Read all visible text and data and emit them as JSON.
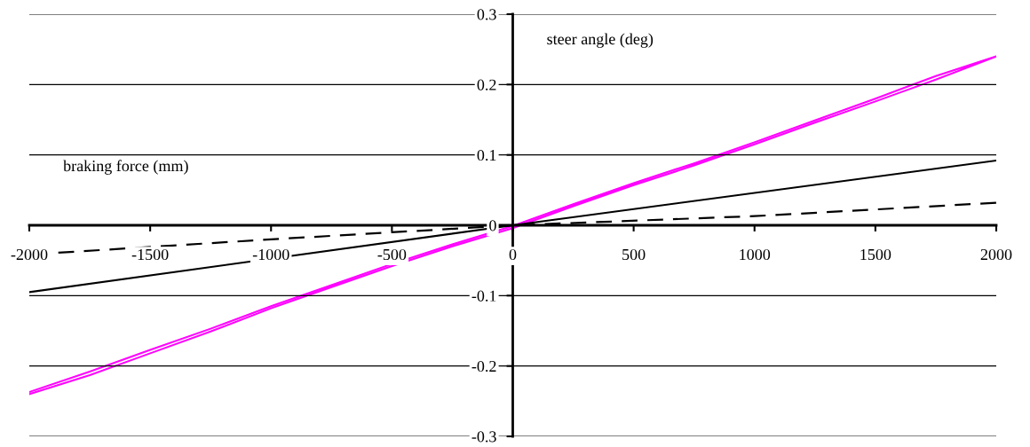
{
  "chart_data": {
    "type": "line",
    "xlabel": "braking force (mm)",
    "ylabel": "steer angle (deg)",
    "xlim": [
      -2000,
      2000
    ],
    "ylim": [
      -0.3,
      0.3
    ],
    "xticks": [
      -2000,
      -1500,
      -1000,
      -500,
      0,
      500,
      1000,
      1500,
      2000
    ],
    "yticks": [
      -0.3,
      -0.2,
      -0.1,
      0,
      0.1,
      0.2,
      0.3
    ],
    "grid": "y",
    "series": [
      {
        "color": "#ff00ff",
        "line_style": "solid",
        "x": [
          -2000,
          -1750,
          -1500,
          -1250,
          -1000,
          -750,
          -500,
          -250,
          0,
          250,
          500,
          750,
          1000,
          1250,
          1500,
          1750,
          2000,
          1750,
          1500,
          1250,
          1000,
          750,
          500,
          250,
          0,
          -250,
          -500,
          -750,
          -1000,
          -1250,
          -1500,
          -1750,
          -2000
        ],
        "values": [
          -0.24,
          -0.213,
          -0.182,
          -0.151,
          -0.118,
          -0.088,
          -0.058,
          -0.03,
          -0.004,
          0.027,
          0.057,
          0.085,
          0.115,
          0.146,
          0.176,
          0.207,
          0.24,
          0.212,
          0.18,
          0.149,
          0.118,
          0.088,
          0.06,
          0.03,
          -0.001,
          -0.027,
          -0.055,
          -0.085,
          -0.115,
          -0.147,
          -0.177,
          -0.208,
          -0.237
        ]
      },
      {
        "color": "#000000",
        "line_style": "solid",
        "x": [
          -2000,
          0,
          2000
        ],
        "values": [
          -0.095,
          0,
          0.092
        ]
      },
      {
        "color": "#000000",
        "line_style": "dashed",
        "x": [
          -1880,
          -1000,
          0,
          1000,
          2000
        ],
        "values": [
          -0.039,
          -0.02,
          0,
          0.013,
          0.032
        ]
      }
    ]
  }
}
